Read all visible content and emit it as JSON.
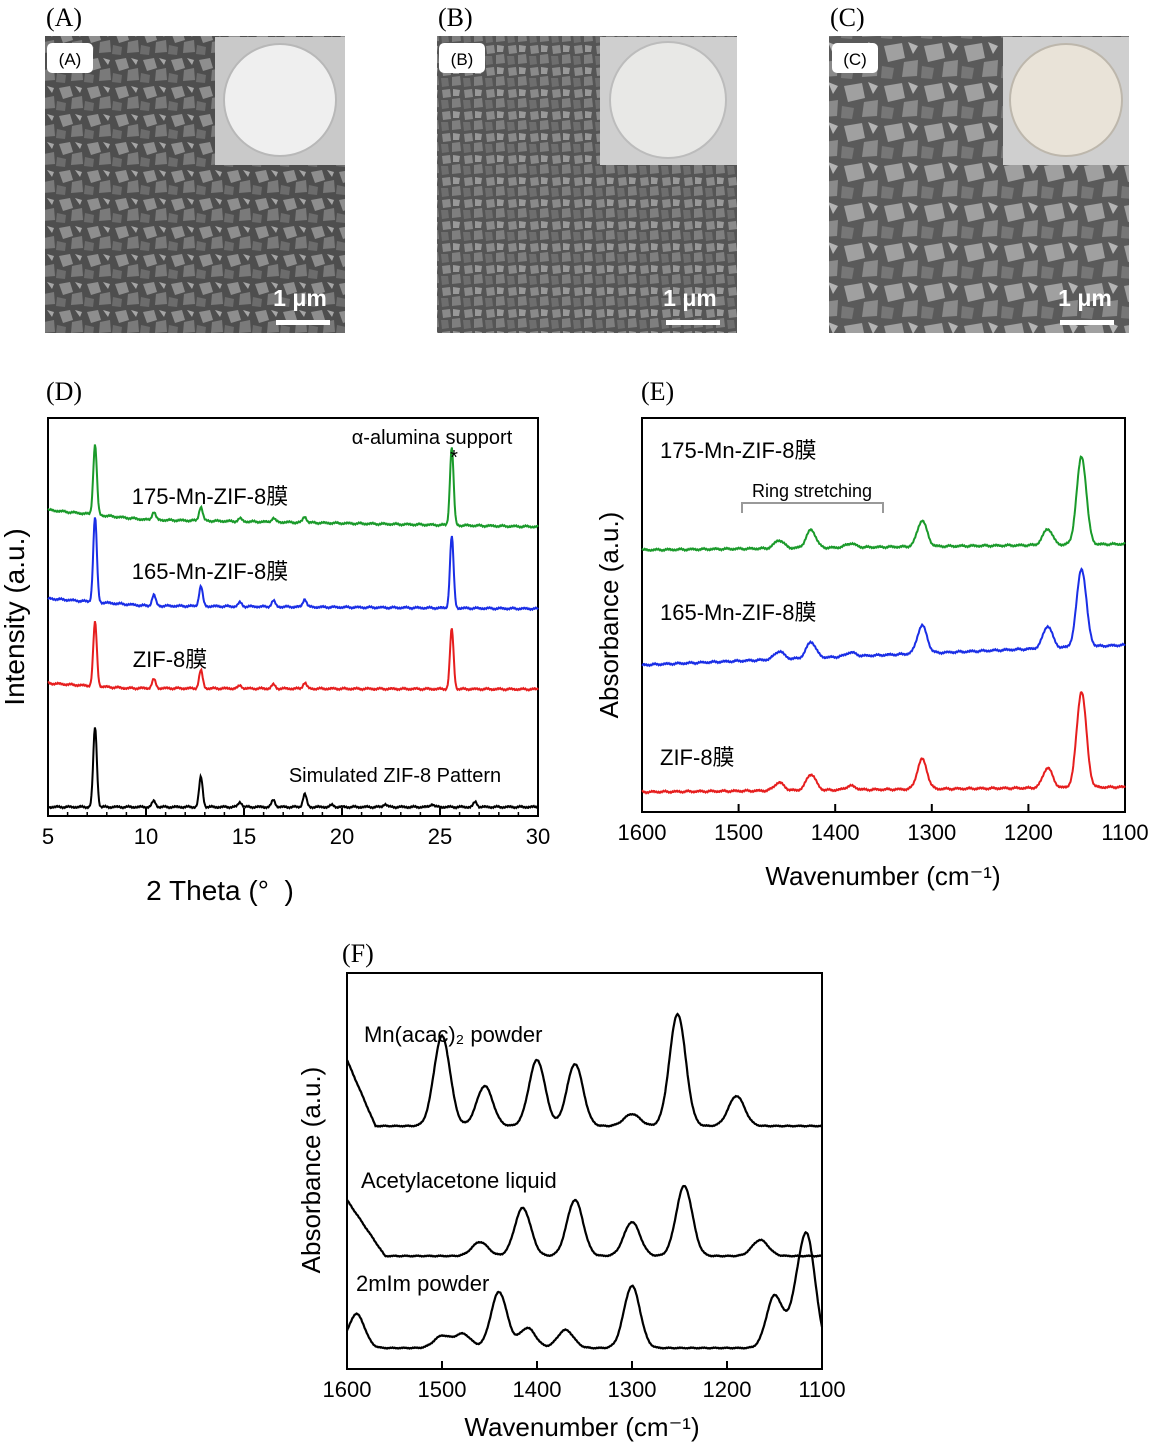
{
  "sem_panels": [
    {
      "letter": "(A)",
      "inner_label": "(A)",
      "scale_text": "1 μm"
    },
    {
      "letter": "(B)",
      "inner_label": "(B)",
      "scale_text": "1 μm"
    },
    {
      "letter": "(C)",
      "inner_label": "(C)",
      "scale_text": "1 μm"
    }
  ],
  "colors": {
    "green": "#1a9a2a",
    "blue": "#1a2ee6",
    "red": "#e61e1e",
    "black": "#000000"
  },
  "chart_data": [
    {
      "panel": "(D)",
      "type": "line",
      "title": "",
      "xlabel": "2 Theta (°  )",
      "ylabel": "Intensity (a.u.)",
      "xlim": [
        5,
        30
      ],
      "x_ticks": [
        "5",
        "10",
        "15",
        "20",
        "25",
        "30"
      ],
      "y_ticks": [],
      "annotations": [
        {
          "text": "α-alumina  support"
        },
        {
          "text": "*"
        }
      ],
      "series": [
        {
          "name": "175-Mn-ZIF-8膜",
          "color": "#1a9a2a",
          "peaks": [
            [
              7.4,
              70
            ],
            [
              10.4,
              8
            ],
            [
              12.8,
              14
            ],
            [
              14.8,
              3
            ],
            [
              16.5,
              4
            ],
            [
              18.1,
              6
            ],
            [
              25.6,
              78
            ]
          ]
        },
        {
          "name": "165-Mn-ZIF-8膜",
          "color": "#1a2ee6",
          "peaks": [
            [
              7.4,
              85
            ],
            [
              10.4,
              11
            ],
            [
              12.8,
              20
            ],
            [
              14.8,
              4
            ],
            [
              16.5,
              6
            ],
            [
              18.1,
              8
            ],
            [
              25.6,
              72
            ]
          ]
        },
        {
          "name": "ZIF-8膜",
          "color": "#e61e1e",
          "peaks": [
            [
              7.4,
              64
            ],
            [
              10.4,
              9
            ],
            [
              12.8,
              18
            ],
            [
              14.8,
              3
            ],
            [
              16.5,
              4
            ],
            [
              18.1,
              6
            ],
            [
              25.6,
              60
            ]
          ]
        },
        {
          "name": "Simulated  ZIF-8 Pattern",
          "color": "#000000",
          "peaks": [
            [
              7.4,
              80
            ],
            [
              10.4,
              6
            ],
            [
              12.8,
              30
            ],
            [
              14.8,
              5
            ],
            [
              16.5,
              7
            ],
            [
              18.1,
              13
            ],
            [
              19.5,
              2
            ],
            [
              22.2,
              3
            ],
            [
              24.6,
              3
            ],
            [
              26.8,
              5
            ]
          ]
        }
      ]
    },
    {
      "panel": "(E)",
      "type": "line",
      "title": "",
      "xlabel": "Wavenumber (cm⁻¹)",
      "ylabel": "Absorbance (a.u.)",
      "xlim": [
        1600,
        1100
      ],
      "x_reversed": true,
      "x_ticks": [
        "1600",
        "1500",
        "1400",
        "1300",
        "1200",
        "1100"
      ],
      "annotations": [
        {
          "text": "Ring stretching",
          "range": [
            1500,
            1350
          ]
        }
      ],
      "series": [
        {
          "name": "175-Mn-ZIF-8膜",
          "color": "#1a9a2a",
          "peaks": [
            [
              1458,
              8
            ],
            [
              1425,
              18
            ],
            [
              1384,
              4
            ],
            [
              1310,
              26
            ],
            [
              1180,
              16
            ],
            [
              1145,
              88
            ]
          ]
        },
        {
          "name": "165-Mn-ZIF-8膜",
          "color": "#1a2ee6",
          "peaks": [
            [
              1458,
              8
            ],
            [
              1425,
              16
            ],
            [
              1384,
              4
            ],
            [
              1310,
              28
            ],
            [
              1180,
              22
            ],
            [
              1145,
              78
            ]
          ]
        },
        {
          "name": "ZIF-8膜",
          "color": "#e61e1e",
          "peaks": [
            [
              1458,
              8
            ],
            [
              1425,
              16
            ],
            [
              1384,
              4
            ],
            [
              1310,
              30
            ],
            [
              1180,
              20
            ],
            [
              1145,
              96
            ]
          ]
        }
      ]
    },
    {
      "panel": "(F)",
      "type": "line",
      "title": "",
      "xlabel": "Wavenumber (cm⁻¹)",
      "ylabel": "Absorbance (a.u.)",
      "xlim": [
        1600,
        1100
      ],
      "x_reversed": true,
      "x_ticks": [
        "1600",
        "1500",
        "1400",
        "1300",
        "1200",
        "1100"
      ],
      "series": [
        {
          "name": "Mn(acac)₂ powder",
          "color": "#000000",
          "peaks": [
            [
              1500,
              90
            ],
            [
              1455,
              40
            ],
            [
              1400,
              66
            ],
            [
              1360,
              62
            ],
            [
              1300,
              12
            ],
            [
              1252,
              112
            ],
            [
              1190,
              30
            ]
          ]
        },
        {
          "name": "Acetylacetone liquid",
          "color": "#000000",
          "peaks": [
            [
              1460,
              14
            ],
            [
              1415,
              48
            ],
            [
              1360,
              56
            ],
            [
              1300,
              34
            ],
            [
              1245,
              70
            ],
            [
              1165,
              16
            ]
          ]
        },
        {
          "name": "2mIm powder",
          "color": "#000000",
          "peaks": [
            [
              1590,
              34
            ],
            [
              1500,
              12
            ],
            [
              1478,
              14
            ],
            [
              1440,
              56
            ],
            [
              1410,
              20
            ],
            [
              1370,
              18
            ],
            [
              1300,
              62
            ],
            [
              1150,
              52
            ],
            [
              1127,
              36
            ],
            [
              1115,
              100
            ]
          ]
        }
      ]
    }
  ]
}
